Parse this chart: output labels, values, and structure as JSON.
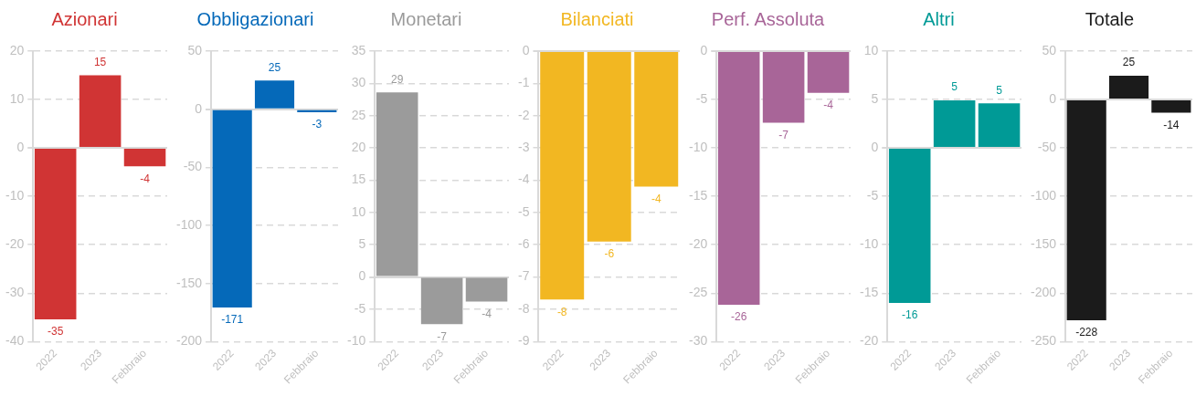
{
  "chart_data": [
    {
      "type": "bar",
      "title": "Azionari",
      "categories": [
        "2022",
        "2023",
        "Febbraio"
      ],
      "series": [
        {
          "color": "#d03434",
          "values": [
            -35.4,
            15,
            -3.8
          ],
          "value_labels": [
            "-35",
            "15",
            "-4"
          ]
        }
      ],
      "ylim": [
        -40,
        20
      ],
      "yticks": [
        -40,
        -30,
        -20,
        -10,
        0,
        10,
        20
      ],
      "grid": "y"
    },
    {
      "type": "bar",
      "title": "Obbligazionari",
      "categories": [
        "2022",
        "2023",
        "Febbraio"
      ],
      "series": [
        {
          "color": "#0569b9",
          "values": [
            -170.6,
            24.6,
            -2.6
          ],
          "value_labels": [
            "-171",
            "25",
            "-3"
          ]
        }
      ],
      "ylim": [
        -200,
        50
      ],
      "yticks": [
        -200,
        -150,
        -100,
        -50,
        0,
        50
      ],
      "grid": "y"
    },
    {
      "type": "bar",
      "title": "Monetari",
      "categories": [
        "2022",
        "2023",
        "Febbraio"
      ],
      "series": [
        {
          "color": "#9b9b9b",
          "values": [
            28.6,
            -7.3,
            -3.8
          ],
          "value_labels": [
            "29",
            "-7",
            "-4"
          ]
        }
      ],
      "ylim": [
        -10,
        35
      ],
      "yticks": [
        -10,
        -5,
        0,
        5,
        10,
        15,
        20,
        25,
        30,
        35
      ],
      "grid": "y"
    },
    {
      "type": "bar",
      "title": "Bilanciati",
      "categories": [
        "2022",
        "2023",
        "Febbraio"
      ],
      "series": [
        {
          "color": "#f2b722",
          "values": [
            -7.7,
            -5.9,
            -4.2
          ],
          "value_labels": [
            "-8",
            "-6",
            "-4"
          ]
        }
      ],
      "ylim": [
        -9,
        0
      ],
      "yticks": [
        -9,
        -8,
        -7,
        -6,
        -5,
        -4,
        -3,
        -2,
        -1,
        0
      ],
      "grid": "y"
    },
    {
      "type": "bar",
      "title": "Perf. Assoluta",
      "categories": [
        "2022",
        "2023",
        "Febbraio"
      ],
      "series": [
        {
          "color": "#a86598",
          "values": [
            -26.2,
            -7.4,
            -4.3
          ],
          "value_labels": [
            "-26",
            "-7",
            "-4"
          ]
        }
      ],
      "ylim": [
        -30,
        0
      ],
      "yticks": [
        -30,
        -25,
        -20,
        -15,
        -10,
        -5,
        0
      ],
      "grid": "y"
    },
    {
      "type": "bar",
      "title": "Altri",
      "categories": [
        "2022",
        "2023",
        "Febbraio"
      ],
      "series": [
        {
          "color": "#009a96",
          "values": [
            -16,
            4.9,
            4.6
          ],
          "value_labels": [
            "-16",
            "5",
            "5"
          ]
        }
      ],
      "ylim": [
        -20,
        10
      ],
      "yticks": [
        -20,
        -15,
        -10,
        -5,
        0,
        5,
        10
      ],
      "grid": "y"
    },
    {
      "type": "bar",
      "title": "Totale",
      "categories": [
        "2022",
        "2023",
        "Febbraio"
      ],
      "series": [
        {
          "color": "#1b1b1b",
          "values": [
            -228,
            24.6,
            -13.6
          ],
          "value_labels": [
            "-228",
            "25",
            "-14"
          ]
        }
      ],
      "ylim": [
        -250,
        50
      ],
      "yticks": [
        -250,
        -200,
        -150,
        -100,
        -50,
        0,
        50
      ],
      "grid": "y"
    }
  ]
}
